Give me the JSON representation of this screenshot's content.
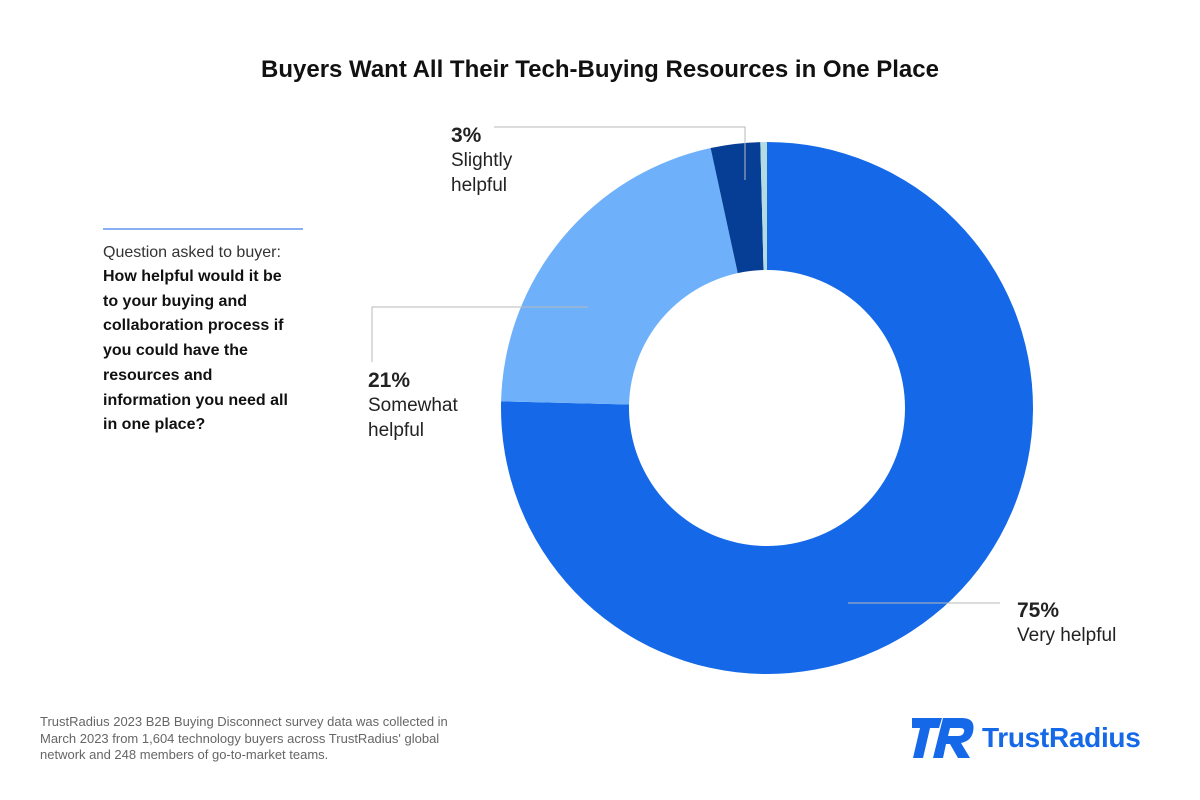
{
  "title": "Buyers Want All Their Tech-Buying Resources in One Place",
  "question": {
    "intro": "Question asked to buyer:",
    "text": "How helpful would it be to your buying and collaboration process if you could have the resources and information you need all in one place?"
  },
  "chart_data": {
    "type": "pie",
    "style": "donut",
    "title": "Buyers Want All Their Tech-Buying Resources in One Place",
    "slices": [
      {
        "label_pct": "75%",
        "label": "Very helpful",
        "value": 75.4,
        "color": "#1569e8",
        "label_position": "bottom-right"
      },
      {
        "label_pct": "21%",
        "label": "Somewhat helpful",
        "value": 21.2,
        "color": "#6eb1fa",
        "label_position": "left"
      },
      {
        "label_pct": "3%",
        "label": "Slightly helpful",
        "value": 3.0,
        "color": "#063e96",
        "label_position": "top"
      },
      {
        "label_pct": "",
        "label": "",
        "value": 0.4,
        "color": "#b5dbe2",
        "label_position": "none"
      }
    ],
    "legend": "none"
  },
  "source_note": "TrustRadius 2023 B2B Buying Disconnect survey data was collected in March 2023 from 1,604 technology buyers across TrustRadius' global network and 248 members of go-to-market teams.",
  "logo": {
    "text": "TrustRadius",
    "icon": "trustradius-logo-icon",
    "color": "#1569e8"
  }
}
